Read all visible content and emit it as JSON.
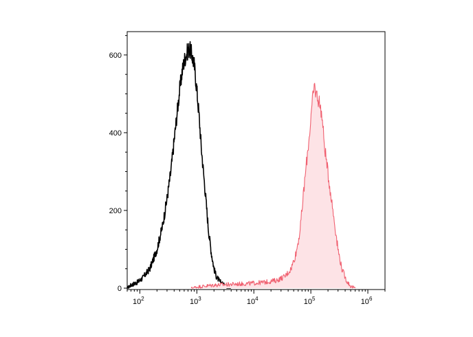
{
  "chart_data": {
    "type": "area",
    "title": "",
    "xlabel": "",
    "ylabel": "",
    "x_scale": "log",
    "xlim": [
      60,
      2000000
    ],
    "ylim": [
      0,
      660
    ],
    "grid": false,
    "legend": "none",
    "y_ticks": [
      {
        "value": 0,
        "label": "0"
      },
      {
        "value": 200,
        "label": "200"
      },
      {
        "value": 400,
        "label": "400"
      },
      {
        "value": 600,
        "label": "600"
      }
    ],
    "x_ticks": [
      {
        "value": 100,
        "base": "10",
        "exp": "2"
      },
      {
        "value": 1000,
        "base": "10",
        "exp": "3"
      },
      {
        "value": 10000,
        "base": "10",
        "exp": "4"
      },
      {
        "value": 100000,
        "base": "10",
        "exp": "5"
      },
      {
        "value": 1000000,
        "base": "10",
        "exp": "6"
      }
    ],
    "series": [
      {
        "color": "#000000",
        "fill": "none",
        "points": [
          [
            60,
            0
          ],
          [
            70,
            8
          ],
          [
            90,
            15
          ],
          [
            110,
            25
          ],
          [
            150,
            50
          ],
          [
            200,
            100
          ],
          [
            250,
            160
          ],
          [
            300,
            230
          ],
          [
            350,
            300
          ],
          [
            400,
            380
          ],
          [
            450,
            450
          ],
          [
            500,
            510
          ],
          [
            550,
            555
          ],
          [
            600,
            585
          ],
          [
            650,
            600
          ],
          [
            700,
            612
          ],
          [
            750,
            615
          ],
          [
            800,
            605
          ],
          [
            900,
            575
          ],
          [
            1000,
            510
          ],
          [
            1100,
            440
          ],
          [
            1200,
            360
          ],
          [
            1400,
            250
          ],
          [
            1600,
            150
          ],
          [
            1800,
            90
          ],
          [
            2000,
            50
          ],
          [
            2200,
            30
          ],
          [
            2500,
            18
          ],
          [
            3000,
            8
          ],
          [
            3500,
            3
          ],
          [
            4000,
            0
          ]
        ]
      },
      {
        "color": "#f06070",
        "fill": "#fde3e6",
        "points": [
          [
            800,
            0
          ],
          [
            1000,
            3
          ],
          [
            2000,
            8
          ],
          [
            4000,
            10
          ],
          [
            8000,
            12
          ],
          [
            15000,
            15
          ],
          [
            25000,
            20
          ],
          [
            35000,
            30
          ],
          [
            45000,
            50
          ],
          [
            55000,
            90
          ],
          [
            65000,
            150
          ],
          [
            75000,
            250
          ],
          [
            85000,
            330
          ],
          [
            95000,
            400
          ],
          [
            105000,
            470
          ],
          [
            115000,
            520
          ],
          [
            125000,
            500
          ],
          [
            140000,
            480
          ],
          [
            155000,
            450
          ],
          [
            170000,
            380
          ],
          [
            190000,
            320
          ],
          [
            220000,
            250
          ],
          [
            260000,
            170
          ],
          [
            300000,
            100
          ],
          [
            350000,
            50
          ],
          [
            420000,
            20
          ],
          [
            500000,
            5
          ],
          [
            600000,
            0
          ]
        ]
      }
    ]
  }
}
